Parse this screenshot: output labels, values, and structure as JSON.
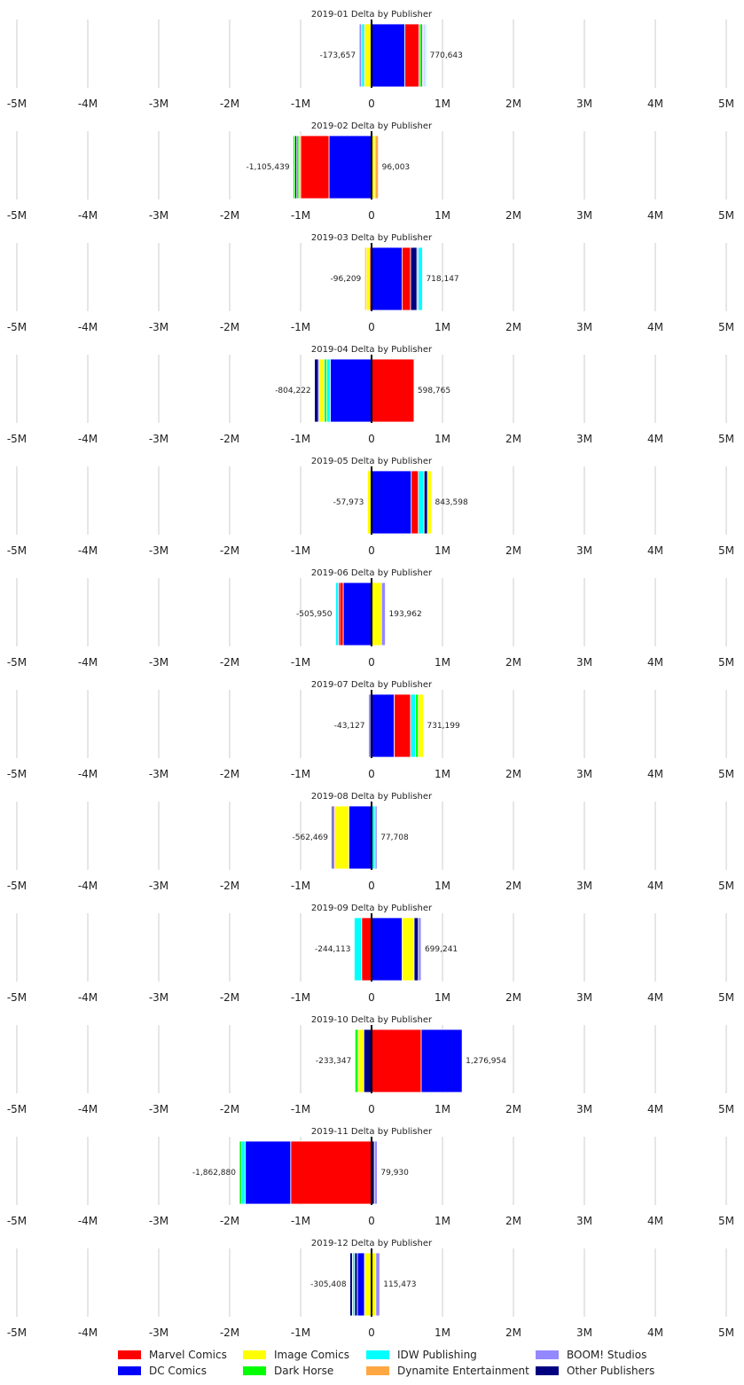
{
  "colors": {
    "Marvel Comics": "#ff0000",
    "DC Comics": "#0000ff",
    "Image Comics": "#ffff00",
    "Dark Horse": "#00ff00",
    "IDW Publishing": "#00ffff",
    "Dynamite Entertainment": "#ffa843",
    "BOOM! Studios": "#9488ff",
    "Other Publishers": "#000080"
  },
  "legend": {
    "entries": [
      "Marvel Comics",
      "Image Comics",
      "IDW Publishing",
      "BOOM! Studios",
      "DC Comics",
      "Dark Horse",
      "Dynamite Entertainment",
      "Other Publishers"
    ]
  },
  "chart_data": {
    "type": "bar",
    "orientation": "horizontal-stacked-diverging",
    "xlim": [
      -5000000,
      5000000
    ],
    "xticks": [
      -5000000,
      -4000000,
      -3000000,
      -2000000,
      -1000000,
      0,
      1000000,
      2000000,
      3000000,
      4000000,
      5000000
    ],
    "xtick_labels": [
      "-5M",
      "-4M",
      "-3M",
      "-2M",
      "-1M",
      "0",
      "1M",
      "2M",
      "3M",
      "4M",
      "5M"
    ],
    "grid": "vertical",
    "legend_position": "bottom",
    "panels": [
      {
        "title": "2019-01 Delta by Publisher",
        "neg_label": "-173,657",
        "pos_label": "770,643",
        "segments": [
          {
            "publisher": "DC Comics",
            "value": 470000
          },
          {
            "publisher": "Marvel Comics",
            "value": 200000
          },
          {
            "publisher": "Dark Horse",
            "value": 30000
          },
          {
            "publisher": "Other Publishers",
            "value": 20000
          },
          {
            "publisher": "Image Comics",
            "value": 20000
          },
          {
            "publisher": "BOOM! Studios",
            "value": 15000
          },
          {
            "publisher": "IDW Publishing",
            "value": 15643
          },
          {
            "publisher": "Image Comics",
            "value": -100000
          },
          {
            "publisher": "IDW Publishing",
            "value": -40000
          },
          {
            "publisher": "BOOM! Studios",
            "value": -33657
          }
        ]
      },
      {
        "title": "2019-02 Delta by Publisher",
        "neg_label": "-1,105,439",
        "pos_label": "96,003",
        "segments": [
          {
            "publisher": "Image Comics",
            "value": 50000
          },
          {
            "publisher": "Dynamite Entertainment",
            "value": 46003
          },
          {
            "publisher": "DC Comics",
            "value": -600000
          },
          {
            "publisher": "Marvel Comics",
            "value": -400000
          },
          {
            "publisher": "Dynamite Entertainment",
            "value": -25000
          },
          {
            "publisher": "Dark Horse",
            "value": -30000
          },
          {
            "publisher": "Other Publishers",
            "value": -25000
          },
          {
            "publisher": "Dark Horse",
            "value": -25439
          }
        ]
      },
      {
        "title": "2019-03 Delta by Publisher",
        "neg_label": "-96,209",
        "pos_label": "718,147",
        "segments": [
          {
            "publisher": "DC Comics",
            "value": 430000
          },
          {
            "publisher": "Marvel Comics",
            "value": 120000
          },
          {
            "publisher": "Other Publishers",
            "value": 90000
          },
          {
            "publisher": "BOOM! Studios",
            "value": 20000
          },
          {
            "publisher": "IDW Publishing",
            "value": 58147
          },
          {
            "publisher": "Marvel Comics",
            "value": -25000
          },
          {
            "publisher": "Image Comics",
            "value": -50000
          },
          {
            "publisher": "Dynamite Entertainment",
            "value": -21209
          }
        ]
      },
      {
        "title": "2019-04 Delta by Publisher",
        "neg_label": "-804,222",
        "pos_label": "598,765",
        "segments": [
          {
            "publisher": "Marvel Comics",
            "value": 598765
          },
          {
            "publisher": "DC Comics",
            "value": -580000
          },
          {
            "publisher": "IDW Publishing",
            "value": -50000
          },
          {
            "publisher": "Dark Horse",
            "value": -40000
          },
          {
            "publisher": "Image Comics",
            "value": -60000
          },
          {
            "publisher": "BOOM! Studios",
            "value": -20000
          },
          {
            "publisher": "Other Publishers",
            "value": -54222
          }
        ]
      },
      {
        "title": "2019-05 Delta by Publisher",
        "neg_label": "-57,973",
        "pos_label": "843,598",
        "segments": [
          {
            "publisher": "DC Comics",
            "value": 560000
          },
          {
            "publisher": "Marvel Comics",
            "value": 100000
          },
          {
            "publisher": "IDW Publishing",
            "value": 80000
          },
          {
            "publisher": "Other Publishers",
            "value": 50000
          },
          {
            "publisher": "Image Comics",
            "value": 53598
          },
          {
            "publisher": "Image Comics",
            "value": -57973
          }
        ]
      },
      {
        "title": "2019-06 Delta by Publisher",
        "neg_label": "-505,950",
        "pos_label": "193,962",
        "segments": [
          {
            "publisher": "Image Comics",
            "value": 140000
          },
          {
            "publisher": "BOOM! Studios",
            "value": 53962
          },
          {
            "publisher": "DC Comics",
            "value": -400000
          },
          {
            "publisher": "Marvel Comics",
            "value": -50000
          },
          {
            "publisher": "Other Publishers",
            "value": -20000
          },
          {
            "publisher": "IDW Publishing",
            "value": -35950
          }
        ]
      },
      {
        "title": "2019-07 Delta by Publisher",
        "neg_label": "-43,127",
        "pos_label": "731,199",
        "segments": [
          {
            "publisher": "DC Comics",
            "value": 320000
          },
          {
            "publisher": "Marvel Comics",
            "value": 230000
          },
          {
            "publisher": "IDW Publishing",
            "value": 70000
          },
          {
            "publisher": "Dark Horse",
            "value": 40000
          },
          {
            "publisher": "Image Comics",
            "value": 71199
          },
          {
            "publisher": "BOOM! Studios",
            "value": -43127
          }
        ]
      },
      {
        "title": "2019-08 Delta by Publisher",
        "neg_label": "-562,469",
        "pos_label": "77,708",
        "segments": [
          {
            "publisher": "IDW Publishing",
            "value": 50000
          },
          {
            "publisher": "BOOM! Studios",
            "value": 27708
          },
          {
            "publisher": "DC Comics",
            "value": -320000
          },
          {
            "publisher": "Image Comics",
            "value": -200000
          },
          {
            "publisher": "Marvel Comics",
            "value": -20000
          },
          {
            "publisher": "Other Publishers",
            "value": -22469
          }
        ]
      },
      {
        "title": "2019-09 Delta by Publisher",
        "neg_label": "-244,113",
        "pos_label": "699,241",
        "segments": [
          {
            "publisher": "DC Comics",
            "value": 430000
          },
          {
            "publisher": "Image Comics",
            "value": 170000
          },
          {
            "publisher": "Other Publishers",
            "value": 60000
          },
          {
            "publisher": "BOOM! Studios",
            "value": 39241
          },
          {
            "publisher": "Marvel Comics",
            "value": -140000
          },
          {
            "publisher": "IDW Publishing",
            "value": -104113
          }
        ]
      },
      {
        "title": "2019-10 Delta by Publisher",
        "neg_label": "-233,347",
        "pos_label": "1,276,954",
        "segments": [
          {
            "publisher": "Marvel Comics",
            "value": 700000
          },
          {
            "publisher": "DC Comics",
            "value": 576954
          },
          {
            "publisher": "Other Publishers",
            "value": -110000
          },
          {
            "publisher": "Image Comics",
            "value": -80000
          },
          {
            "publisher": "Dark Horse",
            "value": -43347
          }
        ]
      },
      {
        "title": "2019-11 Delta by Publisher",
        "neg_label": "-1,862,880",
        "pos_label": "79,930",
        "segments": [
          {
            "publisher": "Other Publishers",
            "value": 40000
          },
          {
            "publisher": "BOOM! Studios",
            "value": 39930
          },
          {
            "publisher": "Marvel Comics",
            "value": -1140000
          },
          {
            "publisher": "DC Comics",
            "value": -640000
          },
          {
            "publisher": "IDW Publishing",
            "value": -50000
          },
          {
            "publisher": "Dark Horse",
            "value": -32880
          }
        ]
      },
      {
        "title": "2019-12 Delta by Publisher",
        "neg_label": "-305,408",
        "pos_label": "115,473",
        "segments": [
          {
            "publisher": "Image Comics",
            "value": 60000
          },
          {
            "publisher": "BOOM! Studios",
            "value": 55473
          },
          {
            "publisher": "Image Comics",
            "value": -100000
          },
          {
            "publisher": "DC Comics",
            "value": -100000
          },
          {
            "publisher": "Other Publishers",
            "value": -40000
          },
          {
            "publisher": "IDW Publishing",
            "value": -30000
          },
          {
            "publisher": "Other Publishers",
            "value": -35408
          }
        ]
      }
    ]
  }
}
